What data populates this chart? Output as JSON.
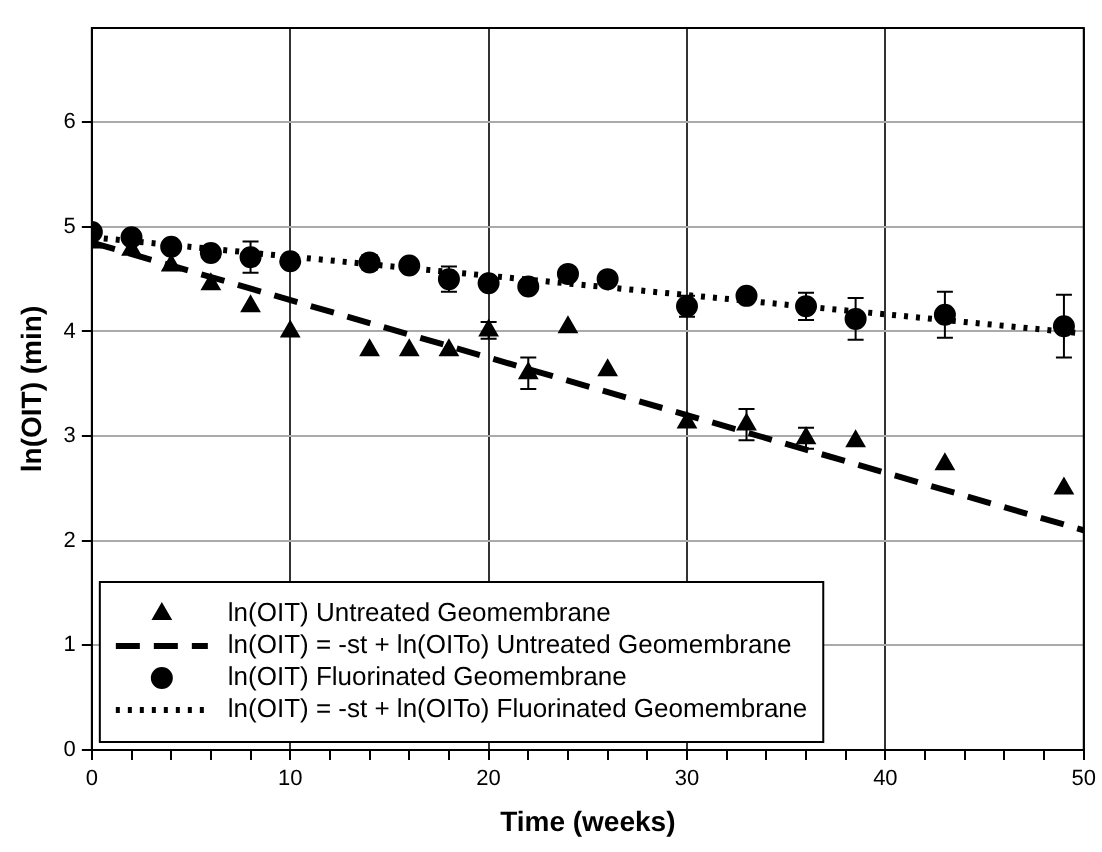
{
  "chart_data": {
    "type": "scatter",
    "xlabel": "Time (weeks)",
    "ylabel": "ln(OIT) (min)",
    "xlim": [
      0,
      50
    ],
    "ylim": [
      0,
      6.9
    ],
    "xticks": [
      0,
      {
        "value": 2,
        "label": null
      },
      {
        "value": 4,
        "label": null
      },
      {
        "value": 6,
        "label": null
      },
      {
        "value": 8,
        "label": null
      },
      10,
      {
        "value": 12,
        "label": null
      },
      {
        "value": 14,
        "label": null
      },
      {
        "value": 16,
        "label": null
      },
      {
        "value": 18,
        "label": null
      },
      20,
      {
        "value": 22,
        "label": null
      },
      {
        "value": 24,
        "label": null
      },
      {
        "value": 26,
        "label": null
      },
      {
        "value": 28,
        "label": null
      },
      30,
      {
        "value": 32,
        "label": null
      },
      {
        "value": 34,
        "label": null
      },
      {
        "value": 36,
        "label": null
      },
      {
        "value": 38,
        "label": null
      },
      40,
      {
        "value": 42,
        "label": null
      },
      {
        "value": 44,
        "label": null
      },
      {
        "value": 46,
        "label": null
      },
      {
        "value": 48,
        "label": null
      },
      50
    ],
    "yticks": [
      0,
      1,
      2,
      3,
      4,
      5,
      6
    ],
    "grid": true,
    "legend": "bottom left",
    "series": [
      {
        "name": "ln(OIT) Untreated Geomembrane",
        "marker": "triangle",
        "color": "#000000",
        "x": [
          0,
          2,
          4,
          6,
          8,
          10,
          14,
          16,
          18,
          20,
          22,
          24,
          26,
          30,
          33,
          36,
          38.5,
          43,
          49
        ],
        "values": [
          4.85,
          4.78,
          4.63,
          4.45,
          4.24,
          4.0,
          3.82,
          3.82,
          3.82,
          4.01,
          3.6,
          4.04,
          3.63,
          3.13,
          3.11,
          2.98,
          2.95,
          2.73,
          2.5
        ],
        "errors": [
          null,
          null,
          null,
          null,
          null,
          null,
          null,
          null,
          null,
          0.08,
          0.15,
          null,
          null,
          null,
          0.15,
          0.1,
          null,
          null,
          null
        ]
      },
      {
        "name": "ln(OIT) = -st + ln(OITo) Untreated Geomembrane",
        "type": "line",
        "marker": "none",
        "line_style": "dashed",
        "color": "#000000",
        "x": [
          0,
          50
        ],
        "values": [
          4.85,
          2.1
        ]
      },
      {
        "name": "ln(OIT) Fluorinated Geomembrane",
        "marker": "circle",
        "color": "#000000",
        "x": [
          0,
          2,
          4,
          6,
          8,
          10,
          14,
          16,
          18,
          20,
          22,
          24,
          26,
          30,
          33,
          36,
          38.5,
          43,
          49
        ],
        "values": [
          4.95,
          4.9,
          4.81,
          4.75,
          4.71,
          4.67,
          4.66,
          4.63,
          4.5,
          4.46,
          4.43,
          4.55,
          4.5,
          4.24,
          4.34,
          4.24,
          4.12,
          4.16,
          4.05
        ],
        "errors": [
          null,
          null,
          null,
          null,
          0.15,
          null,
          0.07,
          null,
          0.12,
          null,
          null,
          null,
          null,
          0.1,
          null,
          0.13,
          0.2,
          0.22,
          0.3
        ]
      },
      {
        "name": "ln(OIT) = -st + ln(OITo) Fluorinated Geomembrane",
        "type": "line",
        "marker": "none",
        "line_style": "dotted",
        "color": "#000000",
        "x": [
          0,
          50
        ],
        "values": [
          4.9,
          3.98
        ]
      }
    ]
  }
}
